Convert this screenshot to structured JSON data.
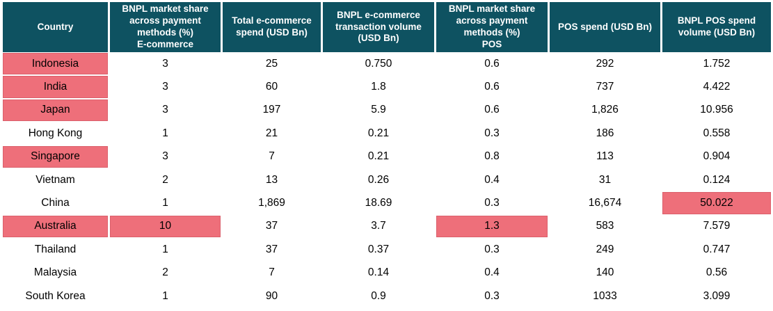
{
  "theme": {
    "page_bg": "#FFFFFF",
    "header_bg": "#0E5261",
    "header_text": "#FFFFFF",
    "body_text": "#000000",
    "highlight_bg": "#EE6F7A",
    "highlight_border": "#DB5F6B"
  },
  "chart_data": {
    "type": "table",
    "title": "",
    "columns": [
      {
        "label": "Country"
      },
      {
        "label": "BNPL market share\nacross payment\nmethods (%)\nE-commerce"
      },
      {
        "label": "Total e-commerce\nspend (USD Bn)"
      },
      {
        "label": "BNPL e-commerce\ntransaction volume\n(USD Bn)"
      },
      {
        "label": "BNPL market share\nacross payment\nmethods (%)\nPOS"
      },
      {
        "label": "POS spend (USD Bn)"
      },
      {
        "label": "BNPL POS spend\nvolume (USD Bn)"
      }
    ],
    "rows": [
      {
        "cells": [
          "Indonesia",
          "3",
          "25",
          "0.750",
          "0.6",
          "292",
          "1.752"
        ],
        "highlight": [
          0
        ]
      },
      {
        "cells": [
          "India",
          "3",
          "60",
          "1.8",
          "0.6",
          "737",
          "4.422"
        ],
        "highlight": [
          0
        ]
      },
      {
        "cells": [
          "Japan",
          "3",
          "197",
          "5.9",
          "0.6",
          "1,826",
          "10.956"
        ],
        "highlight": [
          0
        ]
      },
      {
        "cells": [
          "Hong Kong",
          "1",
          "21",
          "0.21",
          "0.3",
          "186",
          "0.558"
        ],
        "highlight": []
      },
      {
        "cells": [
          "Singapore",
          "3",
          "7",
          "0.21",
          "0.8",
          "113",
          "0.904"
        ],
        "highlight": [
          0
        ]
      },
      {
        "cells": [
          "Vietnam",
          "2",
          "13",
          "0.26",
          "0.4",
          "31",
          "0.124"
        ],
        "highlight": []
      },
      {
        "cells": [
          "China",
          "1",
          "1,869",
          "18.69",
          "0.3",
          "16,674",
          "50.022"
        ],
        "highlight": [
          6
        ]
      },
      {
        "cells": [
          "Australia",
          "10",
          "37",
          "3.7",
          "1.3",
          "583",
          "7.579"
        ],
        "highlight": [
          0,
          1,
          4
        ]
      },
      {
        "cells": [
          "Thailand",
          "1",
          "37",
          "0.37",
          "0.3",
          "249",
          "0.747"
        ],
        "highlight": []
      },
      {
        "cells": [
          "Malaysia",
          "2",
          "7",
          "0.14",
          "0.4",
          "140",
          "0.56"
        ],
        "highlight": []
      },
      {
        "cells": [
          "South Korea",
          "1",
          "90",
          "0.9",
          "0.3",
          "1033",
          "3.099"
        ],
        "highlight": []
      }
    ]
  }
}
